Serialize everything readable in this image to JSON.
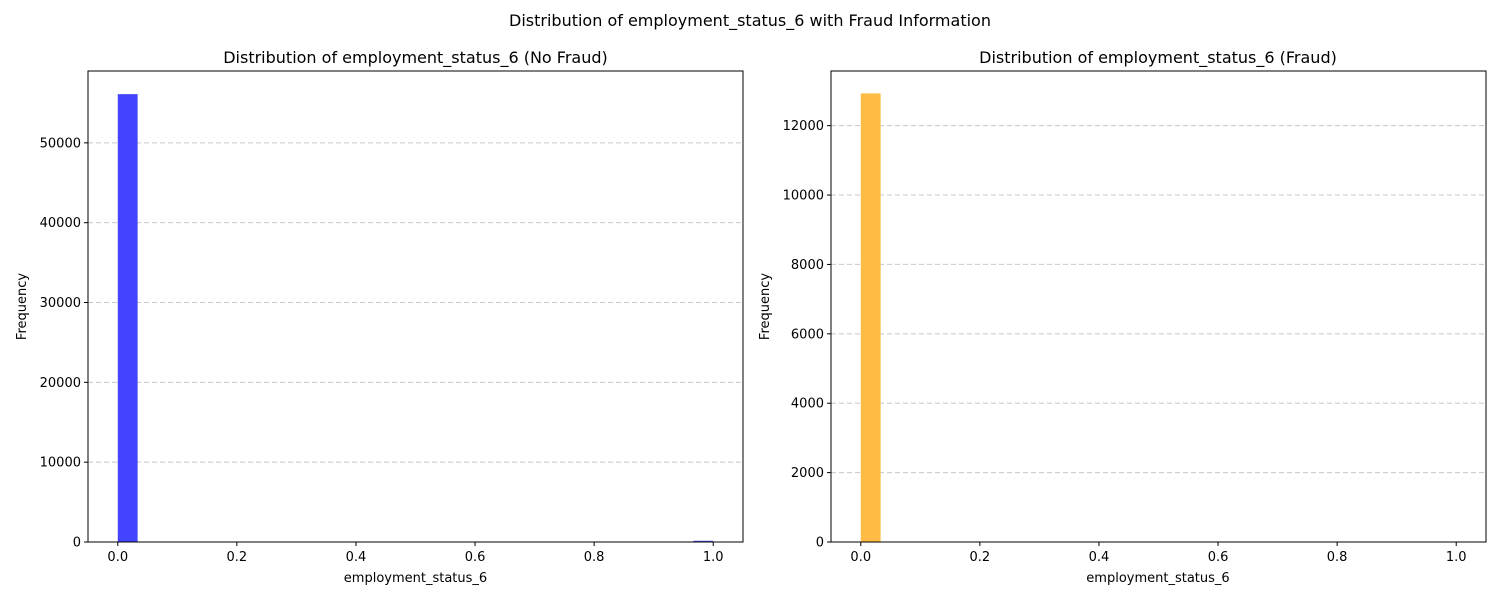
{
  "figure": {
    "suptitle": "Distribution of employment_status_6 with Fraud Information"
  },
  "chart_data": [
    {
      "type": "bar",
      "subtype": "histogram",
      "title": "Distribution of employment_status_6 (No Fraud)",
      "xlabel": "employment_status_6",
      "ylabel": "Frequency",
      "bins": 30,
      "bin_range": [
        0,
        1
      ],
      "bin_values": [
        56100,
        0,
        0,
        0,
        0,
        0,
        0,
        0,
        0,
        0,
        0,
        0,
        0,
        0,
        0,
        0,
        0,
        0,
        0,
        0,
        0,
        0,
        0,
        0,
        0,
        0,
        0,
        0,
        0,
        150
      ],
      "xlim": [
        -0.05,
        1.05
      ],
      "ylim": [
        0,
        59000
      ],
      "xticks": [
        0.0,
        0.2,
        0.4,
        0.6,
        0.8,
        1.0
      ],
      "xtick_labels": [
        "0.0",
        "0.2",
        "0.4",
        "0.6",
        "0.8",
        "1.0"
      ],
      "yticks": [
        0,
        10000,
        20000,
        30000,
        40000,
        50000
      ],
      "ytick_labels": [
        "0",
        "10000",
        "20000",
        "30000",
        "40000",
        "50000"
      ],
      "grid": "y-axis dashed",
      "color": "#4444ff"
    },
    {
      "type": "bar",
      "subtype": "histogram",
      "title": "Distribution of employment_status_6 (Fraud)",
      "xlabel": "employment_status_6",
      "ylabel": "Frequency",
      "bins": 30,
      "bin_range": [
        0,
        1
      ],
      "bin_values": [
        12930,
        0,
        0,
        0,
        0,
        0,
        0,
        0,
        0,
        0,
        0,
        0,
        0,
        0,
        0,
        0,
        0,
        0,
        0,
        0,
        0,
        0,
        0,
        0,
        0,
        0,
        0,
        0,
        0,
        0
      ],
      "xlim": [
        -0.05,
        1.05
      ],
      "ylim": [
        0,
        13575
      ],
      "xticks": [
        0.0,
        0.2,
        0.4,
        0.6,
        0.8,
        1.0
      ],
      "xtick_labels": [
        "0.0",
        "0.2",
        "0.4",
        "0.6",
        "0.8",
        "1.0"
      ],
      "yticks": [
        0,
        2000,
        4000,
        6000,
        8000,
        10000,
        12000
      ],
      "ytick_labels": [
        "0",
        "2000",
        "4000",
        "6000",
        "8000",
        "10000",
        "12000"
      ],
      "grid": "y-axis dashed",
      "color": "#ffbb44"
    }
  ]
}
